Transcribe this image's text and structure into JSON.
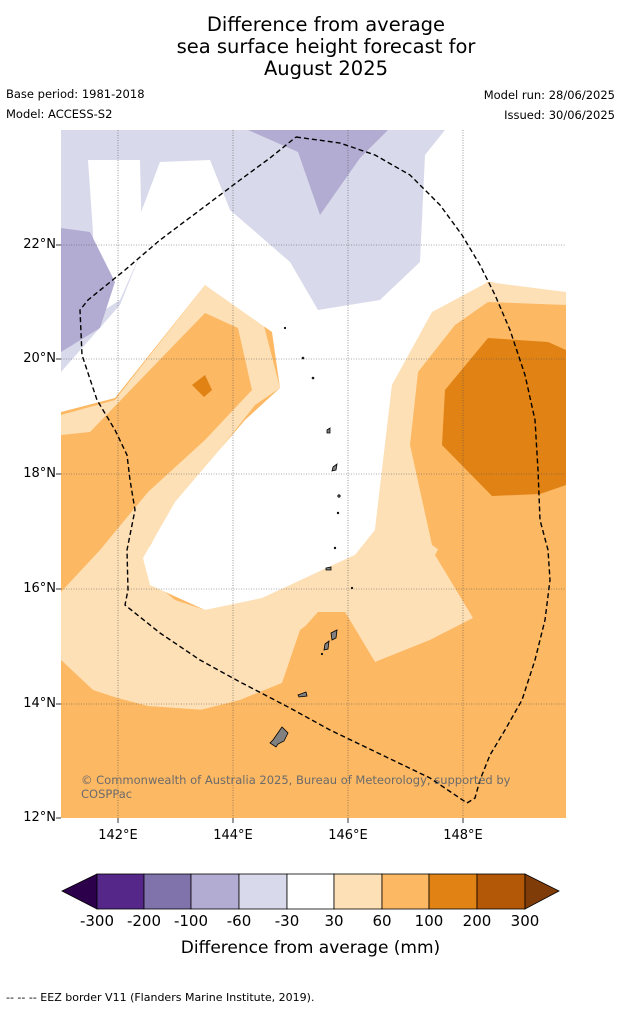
{
  "title_lines": [
    "Difference from average",
    "sea surface height forecast for",
    "August 2025"
  ],
  "meta": {
    "base_period": "Base period: 1981-2018",
    "model": "Model: ACCESS-S2",
    "model_run": "Model run: 28/06/2025",
    "issued": "Issued: 30/06/2025"
  },
  "map": {
    "lat_labels": [
      "22°N",
      "20°N",
      "18°N",
      "16°N",
      "14°N",
      "12°N"
    ],
    "lon_labels": [
      "142°E",
      "144°E",
      "146°E",
      "148°E"
    ],
    "copyright": "© Commonwealth of Australia 2025, Bureau of Meteorology, supported by COSPPac",
    "colors": {
      "land": "#808080",
      "c_m300": "#2d004b",
      "c_m200": "#542788",
      "c_m100": "#8073ac",
      "c_m60": "#b2abd2",
      "c_m30": "#d8daeb",
      "c_0": "#ffffff",
      "c_30": "#fee0b6",
      "c_60": "#fdb863",
      "c_100": "#e08214",
      "c_200": "#b35806",
      "c_300": "#7f3b08"
    }
  },
  "colorbar": {
    "labels": [
      "-300",
      "-200",
      "-100",
      "-60",
      "-30",
      "30",
      "60",
      "100",
      "200",
      "300"
    ],
    "title": "Difference from average (mm)"
  },
  "footer": "--  --  -- EEZ border V11 (Flanders Marine Institute, 2019)."
}
